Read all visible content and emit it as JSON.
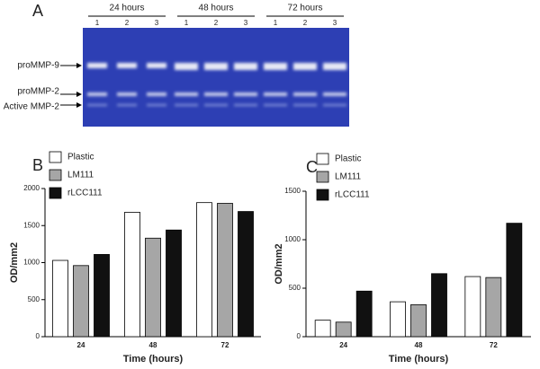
{
  "gel": {
    "panel_label": "A",
    "groups": [
      "24 hours",
      "48 hours",
      "72 hours"
    ],
    "lanes": [
      "1",
      "2",
      "3",
      "1",
      "2",
      "3",
      "1",
      "2",
      "3"
    ],
    "bands": [
      "proMMP-9",
      "proMMP-2",
      "Active MMP-2"
    ]
  },
  "chart_data": [
    {
      "type": "bar",
      "panel_label": "B",
      "y_label": "OD/mm2",
      "x_label": "Time (hours)",
      "categories": [
        "24",
        "48",
        "72"
      ],
      "series": [
        {
          "name": "Plastic",
          "color": "#ffffff",
          "values": [
            1030,
            1680,
            1810
          ]
        },
        {
          "name": "LM111",
          "color": "#a6a6a6",
          "values": [
            960,
            1330,
            1800
          ]
        },
        {
          "name": "rLCC111",
          "color": "#111111",
          "values": [
            1110,
            1440,
            1690
          ]
        }
      ],
      "ylim": [
        0,
        2000
      ],
      "yticks": [
        0,
        500,
        1000,
        1500,
        2000
      ]
    },
    {
      "type": "bar",
      "panel_label": "C",
      "y_label": "OD/mm2",
      "x_label": "Time (hours)",
      "categories": [
        "24",
        "48",
        "72"
      ],
      "series": [
        {
          "name": "Plastic",
          "color": "#ffffff",
          "values": [
            170,
            360,
            620
          ]
        },
        {
          "name": "LM111",
          "color": "#a6a6a6",
          "values": [
            150,
            330,
            610
          ]
        },
        {
          "name": "rLCC111",
          "color": "#111111",
          "values": [
            470,
            650,
            1170
          ]
        }
      ],
      "ylim": [
        0,
        1500
      ],
      "yticks": [
        0,
        500,
        1000,
        1500
      ]
    }
  ]
}
